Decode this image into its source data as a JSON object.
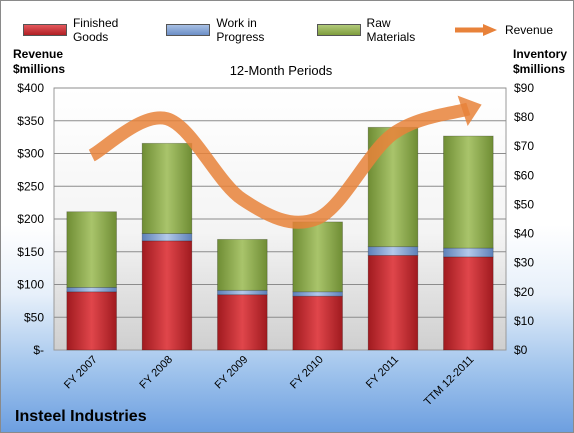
{
  "company": "Insteel Industries",
  "chart_data": {
    "type": "bar",
    "stacked": true,
    "subtitle": "12-Month Periods",
    "categories": [
      "FY 2007",
      "FY 2008",
      "FY 2009",
      "FY 2010",
      "FY 2011",
      "TTM 12-2011"
    ],
    "left_axis_title_line1": "Revenue",
    "left_axis_title_line2": "$millions",
    "right_axis_title_line1": "Inventory",
    "right_axis_title_line2": "$millions",
    "left_ylim": [
      0,
      400
    ],
    "right_ylim": [
      0,
      90
    ],
    "left_ticks": [
      "$-",
      "$50",
      "$100",
      "$150",
      "$200",
      "$250",
      "$300",
      "$350",
      "$400"
    ],
    "right_ticks": [
      "$0",
      "$10",
      "$20",
      "$30",
      "$40",
      "$50",
      "$60",
      "$70",
      "$80",
      "$90"
    ],
    "gridlines": true,
    "legend_position": "top",
    "series": [
      {
        "name": "Finished Goods",
        "axis": "right",
        "color": "#c0282d",
        "values": [
          20,
          37.5,
          19,
          18.5,
          32.5,
          32
        ]
      },
      {
        "name": "Work in Progress",
        "axis": "right",
        "color": "#7fa0d0",
        "values": [
          1.5,
          2.5,
          1.5,
          1.5,
          3,
          3
        ]
      },
      {
        "name": "Raw Materials",
        "axis": "right",
        "color": "#92b050",
        "values": [
          26,
          31,
          17.5,
          24,
          41,
          38.5
        ]
      },
      {
        "name": "Revenue",
        "axis": "left",
        "type": "line",
        "color": "#e8823a",
        "values": [
          297,
          353,
          230,
          201,
          330,
          368
        ]
      }
    ]
  }
}
